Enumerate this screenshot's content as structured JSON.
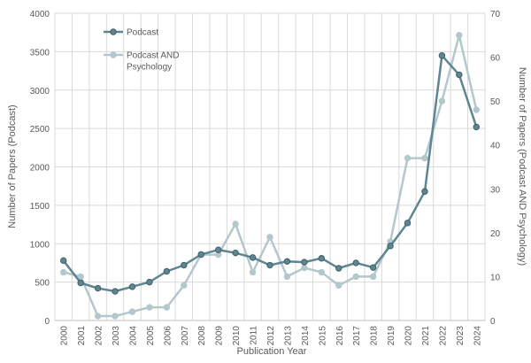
{
  "chart_data": {
    "type": "line",
    "title": "",
    "xlabel": "Publication Year",
    "ylabel": "Number of Papers (Podcast)",
    "ylabel_right": "Number of Papers (Podcast AND Psychology)",
    "ylim": [
      0,
      4000
    ],
    "ylim_right": [
      0,
      70
    ],
    "y_ticks": [
      0,
      500,
      1000,
      1500,
      2000,
      2500,
      3000,
      3500,
      4000
    ],
    "y_ticks_right": [
      0,
      10,
      20,
      30,
      40,
      50,
      60,
      70
    ],
    "grid": true,
    "legend_position": "top-left",
    "x": [
      "2000",
      "2001",
      "2002",
      "2003",
      "2004",
      "2005",
      "2006",
      "2007",
      "2008",
      "2009",
      "2010",
      "2011",
      "2012",
      "2013",
      "2014",
      "2015",
      "2016",
      "2017",
      "2018",
      "2019",
      "2020",
      "2021",
      "2022",
      "2023",
      "2024"
    ],
    "series": [
      {
        "name": "Podcast",
        "axis": "left",
        "color": "#5e8691",
        "marker_fill": "#5e8691",
        "marker_stroke": "#3f5f69",
        "values": [
          780,
          490,
          420,
          380,
          440,
          500,
          640,
          720,
          860,
          920,
          880,
          820,
          720,
          770,
          760,
          810,
          680,
          750,
          690,
          970,
          1270,
          1680,
          3450,
          3200,
          2520
        ]
      },
      {
        "name": "Podcast AND Psychology",
        "axis": "right",
        "color": "#b3c8cc",
        "marker_fill": "#b3c8cc",
        "marker_stroke": "#b3c8cc",
        "values": [
          11,
          10,
          1,
          1,
          2,
          3,
          3,
          8,
          15,
          15,
          22,
          11,
          19,
          10,
          12,
          11,
          8,
          10,
          10,
          18,
          37,
          37,
          50,
          65,
          48
        ]
      }
    ]
  }
}
